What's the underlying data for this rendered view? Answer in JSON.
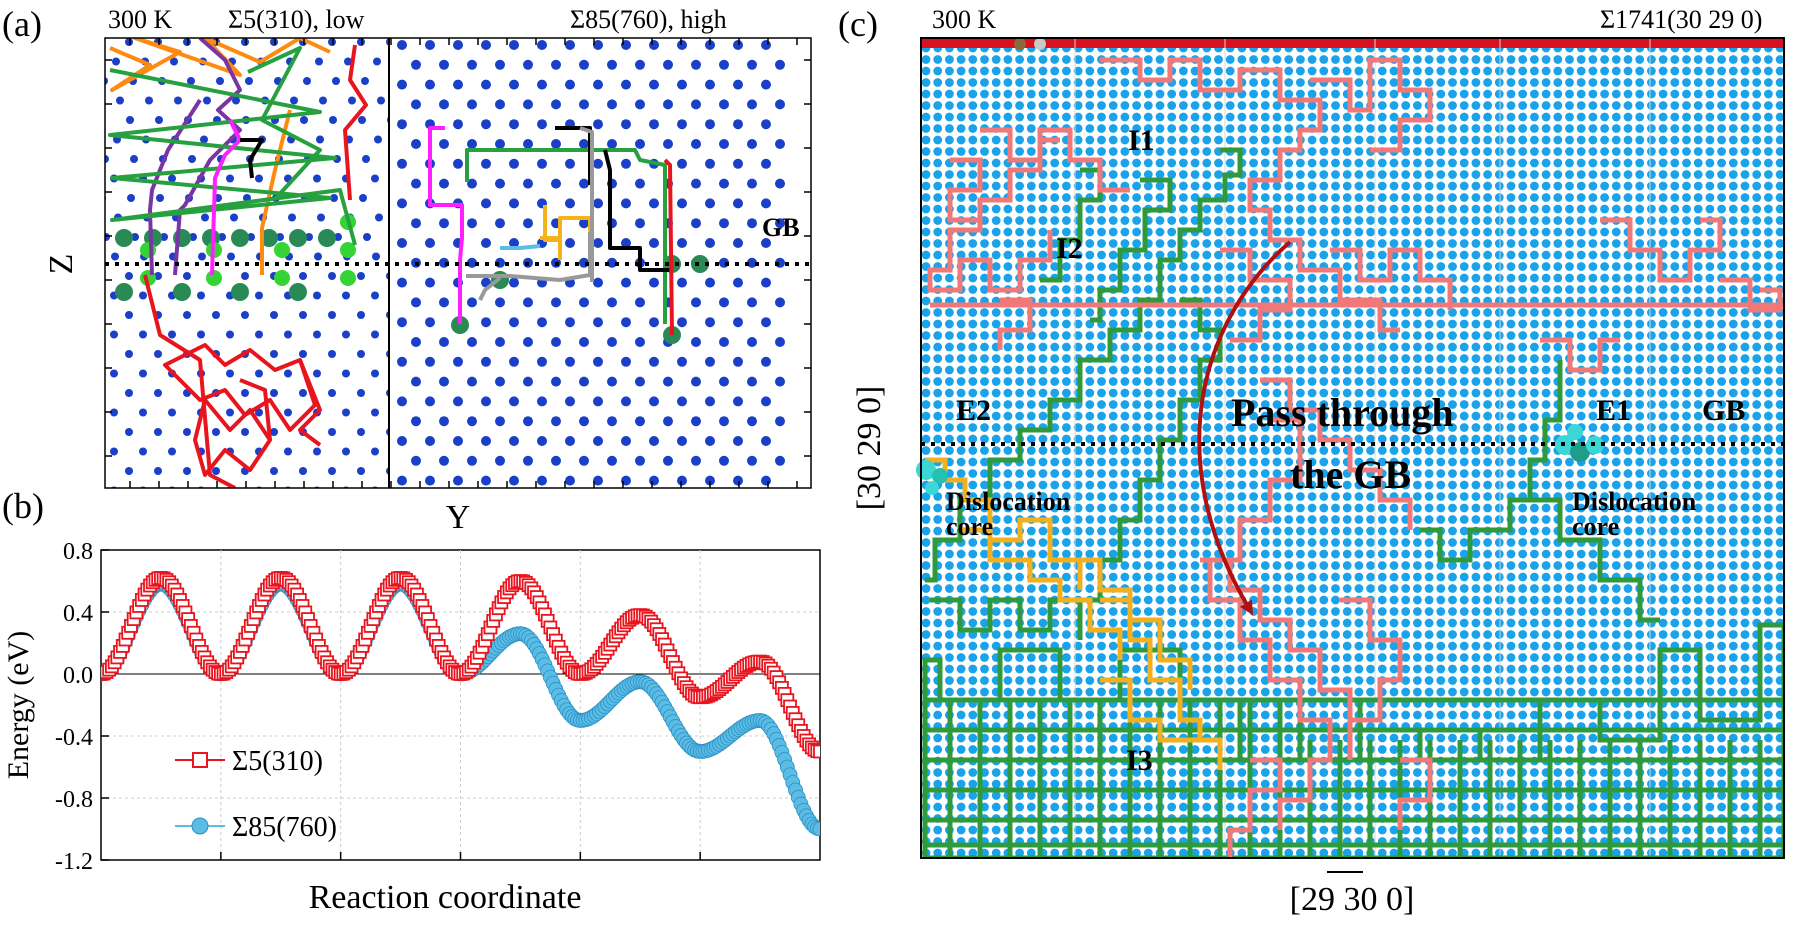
{
  "panel_a": {
    "tag": "(a)",
    "left_title": "300 K",
    "left_gb_title": "Σ5(310), low",
    "right_gb_title": "Σ85(760), high",
    "gb_label": "GB",
    "y_axis_label": "Z",
    "x_axis_label": "Y"
  },
  "panel_b": {
    "tag": "(b)",
    "x_axis_label": "Reaction coordinate",
    "y_axis_label": "Energy (eV)",
    "y_ticks": [
      "0.8",
      "0.4",
      "0.0",
      "-0.4",
      "-0.8",
      "-1.2"
    ],
    "legend": [
      "Σ5(310)",
      "Σ85(760)"
    ],
    "colors": {
      "sigma5": "#e8141e",
      "sigma85": "#5bbde6"
    }
  },
  "panel_c": {
    "tag": "(c)",
    "title_left": "300 K",
    "title_right": "Σ1741(30 29 0)",
    "x_axis_label": "[29 30 0]",
    "x_axis_overline": "30",
    "y_axis_label": "[30 29 0]",
    "annotations": {
      "i1": "I1",
      "i2": "I2",
      "i3": "I3",
      "e1": "E1",
      "e2": "E2",
      "gb": "GB",
      "pass_line1": "Pass through",
      "pass_line2": "the GB",
      "disloc_left_1": "Dislocation",
      "disloc_left_2": "core",
      "disloc_right_1": "Dislocation",
      "disloc_right_2": "core"
    },
    "colors": {
      "atoms": "#1aa3ea",
      "i1_path": "#f07878",
      "i2_path": "#2e9a3c",
      "i3_path": "#f2b01e",
      "arrow": "#b01010"
    }
  },
  "chart_data": [
    {
      "type": "line",
      "panel": "b",
      "xlabel": "Reaction coordinate",
      "ylabel": "Energy (eV)",
      "ylim": [
        -1.2,
        0.8
      ],
      "series": [
        {
          "name": "Σ5(310)",
          "marker": "open-square",
          "values": [
            0.0,
            0.62,
            0.0,
            0.62,
            0.0,
            0.62,
            0.0,
            0.6,
            0.0,
            0.38,
            -0.15,
            0.08,
            -0.5
          ]
        },
        {
          "name": "Σ85(760)",
          "marker": "filled-circle",
          "values": [
            0.0,
            0.58,
            0.0,
            0.58,
            0.0,
            0.58,
            0.0,
            0.26,
            -0.3,
            -0.05,
            -0.5,
            -0.3,
            -1.0
          ]
        }
      ]
    }
  ]
}
